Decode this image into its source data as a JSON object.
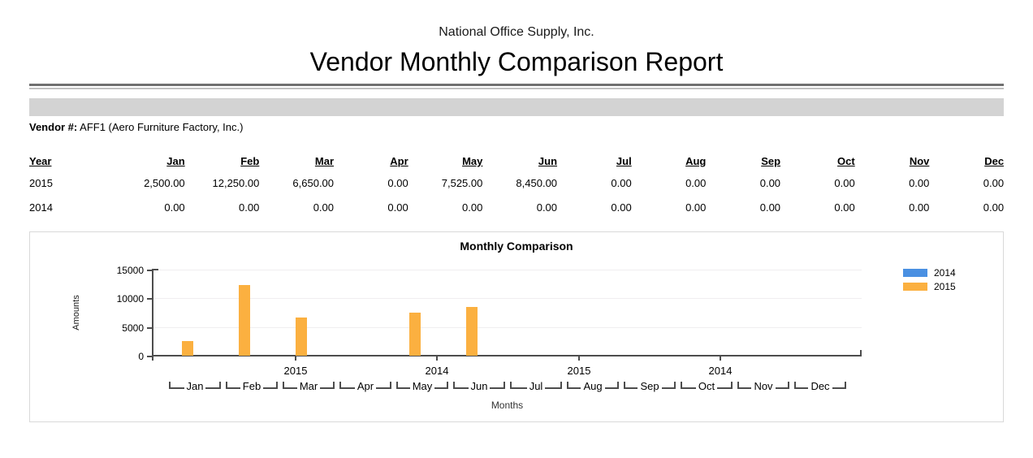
{
  "header": {
    "company": "National Office Supply, Inc.",
    "title": "Vendor Monthly Comparison Report"
  },
  "vendor": {
    "label": "Vendor #:",
    "value": " AFF1 (Aero Furniture Factory, Inc.)"
  },
  "table": {
    "year_header": "Year",
    "month_headers": [
      "Jan",
      "Feb",
      "Mar",
      "Apr",
      "May",
      "Jun",
      "Jul",
      "Aug",
      "Sep",
      "Oct",
      "Nov",
      "Dec"
    ],
    "rows": [
      {
        "year": "2015",
        "values": [
          "2,500.00",
          "12,250.00",
          "6,650.00",
          "0.00",
          "7,525.00",
          "8,450.00",
          "0.00",
          "0.00",
          "0.00",
          "0.00",
          "0.00",
          "0.00"
        ]
      },
      {
        "year": "2014",
        "values": [
          "0.00",
          "0.00",
          "0.00",
          "0.00",
          "0.00",
          "0.00",
          "0.00",
          "0.00",
          "0.00",
          "0.00",
          "0.00",
          "0.00"
        ]
      }
    ]
  },
  "chart_data": {
    "type": "bar",
    "title": "Monthly Comparison",
    "xlabel": "Months",
    "ylabel": "Amounts",
    "categories": [
      "Jan",
      "Feb",
      "Mar",
      "Apr",
      "May",
      "Jun",
      "Jul",
      "Aug",
      "Sep",
      "Oct",
      "Nov",
      "Dec"
    ],
    "series": [
      {
        "name": "2014",
        "color": "#4a90e2",
        "values": [
          0,
          0,
          0,
          0,
          0,
          0,
          0,
          0,
          0,
          0,
          0,
          0
        ]
      },
      {
        "name": "2015",
        "color": "#fbb040",
        "values": [
          2500,
          12250,
          6650,
          0,
          7525,
          8450,
          0,
          0,
          0,
          0,
          0,
          0
        ]
      }
    ],
    "ylim": [
      0,
      15000
    ],
    "yticks": [
      0,
      5000,
      10000,
      15000
    ],
    "axis_group_labels": [
      "2015",
      "2014",
      "2015",
      "2014"
    ],
    "axis_group_fractions": [
      0.2,
      0.4,
      0.6,
      0.8
    ],
    "legend_position": "right",
    "grid": "horizontal"
  }
}
